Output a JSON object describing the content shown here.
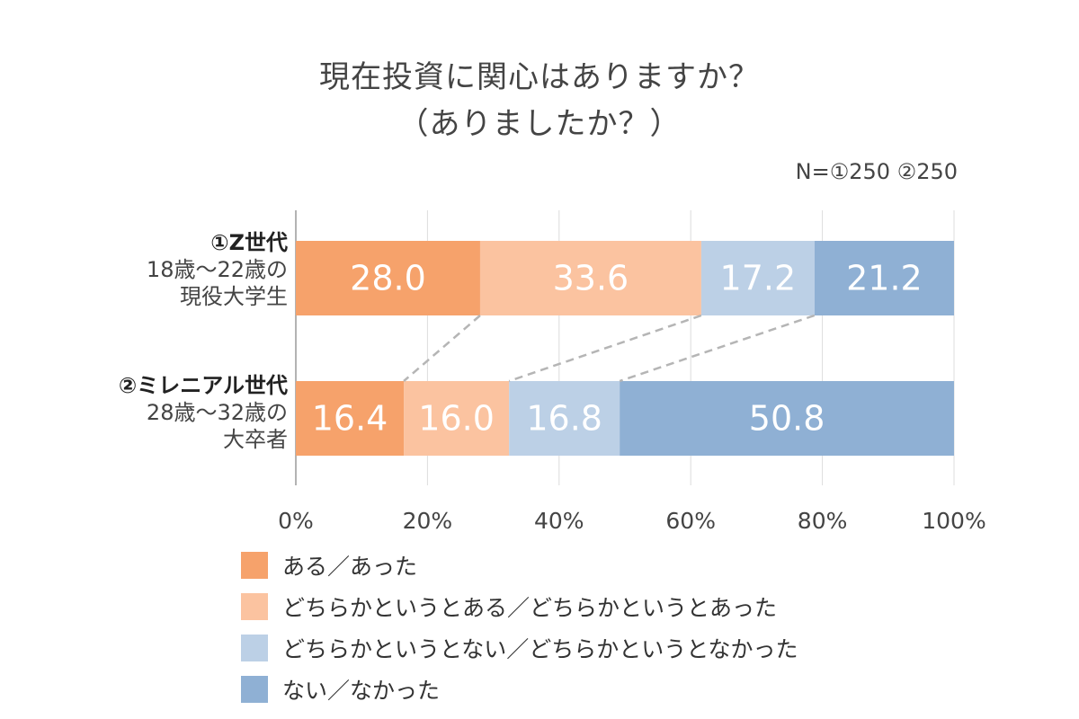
{
  "title_line1": "現在投資に関心はありますか？",
  "title_line2": "（ありましたか？）",
  "sample_note": "N=①250 ②250",
  "rows": [
    {
      "name": "①Z世代",
      "line2": "18歳〜22歳の",
      "line3": "現役大学生"
    },
    {
      "name": "②ミレニアル世代",
      "line2": "28歳〜32歳の",
      "line3": "大卒者"
    }
  ],
  "colors": [
    "#f6a26b",
    "#fbc3a0",
    "#bcd0e6",
    "#8fb0d4"
  ],
  "chart_data": {
    "type": "bar",
    "orientation": "horizontal",
    "stacked": true,
    "categories": [
      "①Z世代",
      "②ミレニアル世代"
    ],
    "series": [
      {
        "name": "ある／あった",
        "values": [
          28.0,
          16.4
        ]
      },
      {
        "name": "どちらかというとある／どちらかというとあった",
        "values": [
          33.6,
          16.0
        ]
      },
      {
        "name": "どちらかというとない／どちらかというとなかった",
        "values": [
          17.2,
          16.8
        ]
      },
      {
        "name": "ない／なかった",
        "values": [
          21.2,
          50.8
        ]
      }
    ],
    "xlim": [
      0,
      100
    ],
    "x_ticks": [
      "0%",
      "20%",
      "40%",
      "60%",
      "80%",
      "100%"
    ],
    "grid": true,
    "legend_position": "bottom"
  }
}
